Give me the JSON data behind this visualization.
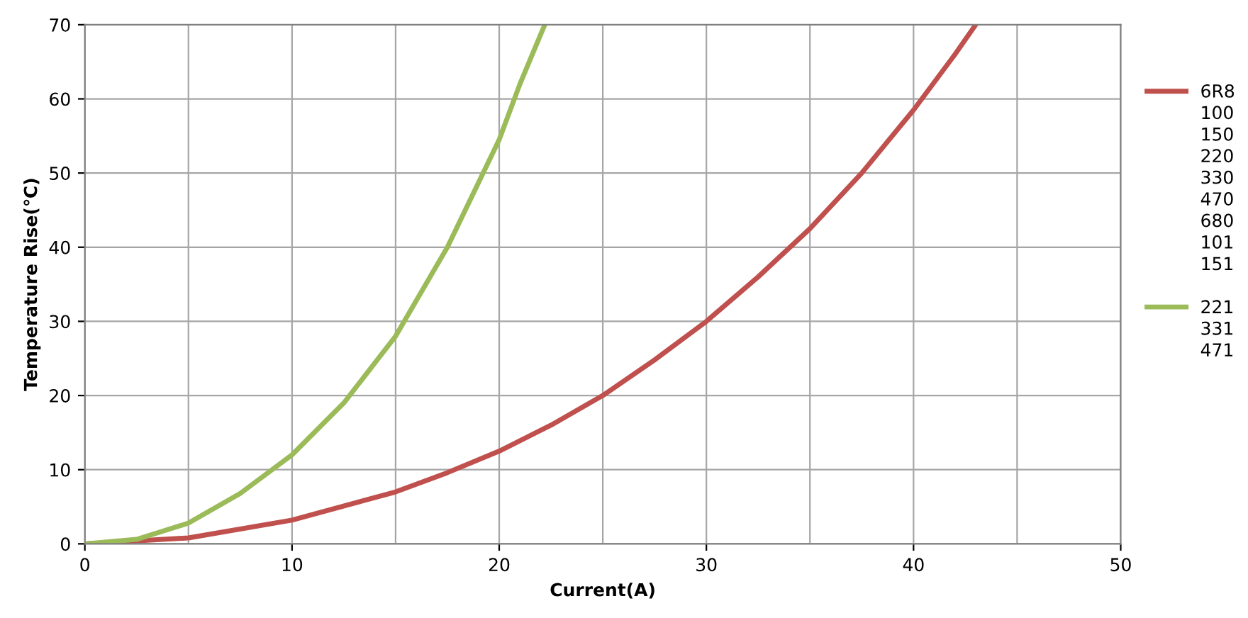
{
  "chart_data": {
    "type": "line",
    "xlabel": "Current(A)",
    "ylabel": "Temperature Rise(℃)",
    "xlim": [
      0,
      50
    ],
    "xticks": [
      0,
      10,
      20,
      30,
      40,
      50
    ],
    "ylim": [
      0,
      70
    ],
    "yticks": [
      0,
      10,
      20,
      30,
      40,
      50,
      60,
      70
    ],
    "grid": true,
    "legend": "right",
    "marker": "none",
    "line_style": "solid",
    "series": [
      {
        "name": "6R8\n100\n150\n220\n330\n470\n680\n101\n151",
        "color": "#c0504d",
        "x": [
          0,
          5,
          10,
          15,
          17.5,
          20,
          22.5,
          25,
          27.5,
          30,
          32.5,
          35,
          37.5,
          40,
          42,
          43
        ],
        "values": [
          0,
          0.8,
          3.2,
          7,
          9.6,
          12.5,
          16,
          20,
          24.8,
          30,
          36,
          42.5,
          50,
          58.5,
          66,
          70
        ]
      },
      {
        "name": "221\n331\n471",
        "color": "#9bbb59",
        "x": [
          0,
          2.5,
          5,
          7.5,
          10,
          12.5,
          15,
          17.5,
          20,
          21,
          22.2
        ],
        "values": [
          0,
          0.6,
          2.8,
          6.8,
          12,
          19,
          28,
          40,
          54.5,
          62,
          70
        ]
      }
    ]
  }
}
